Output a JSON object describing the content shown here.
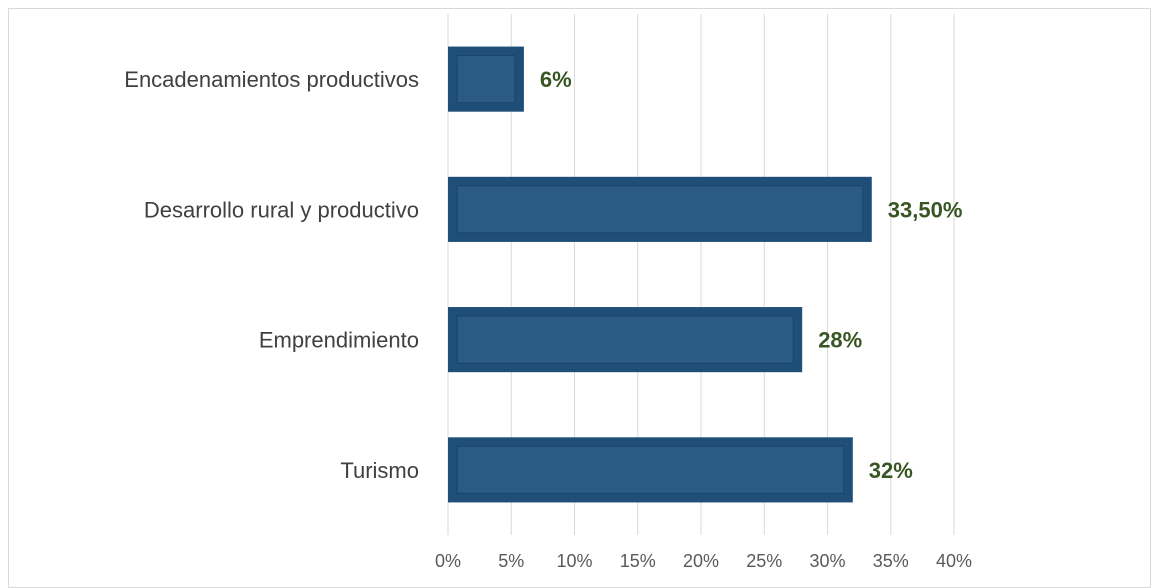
{
  "chart_data": {
    "type": "bar",
    "orientation": "horizontal",
    "categories": [
      "Encadenamientos productivos",
      "Desarrollo rural y productivo",
      "Emprendimiento",
      "Turismo"
    ],
    "values": [
      6,
      33.5,
      28,
      32
    ],
    "data_labels": [
      "6%",
      "33,50%",
      "28%",
      "32%"
    ],
    "xlim": [
      0,
      40
    ],
    "x_ticks": [
      0,
      5,
      10,
      15,
      20,
      25,
      30,
      35,
      40
    ],
    "x_tick_labels": [
      "0%",
      "5%",
      "10%",
      "15%",
      "20%",
      "25%",
      "30%",
      "35%",
      "40%"
    ],
    "title": "",
    "xlabel": "",
    "ylabel": "",
    "grid": "vertical",
    "legend": "none",
    "colors": {
      "bar": "#1f4e79",
      "bar_inner": "#2a5a85",
      "data_label": "#375623",
      "grid": "#d9d9d9"
    }
  }
}
